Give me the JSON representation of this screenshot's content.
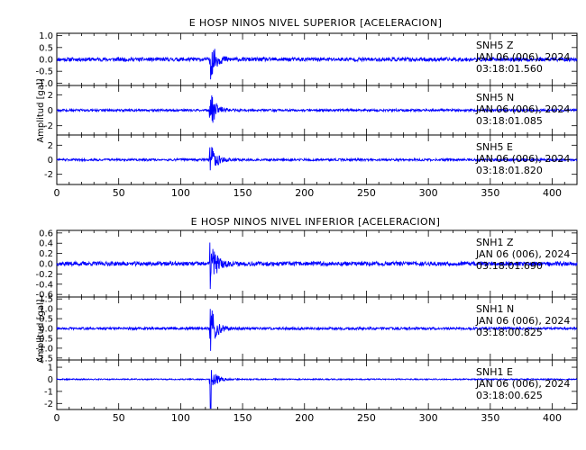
{
  "chart_data": [
    {
      "type": "line",
      "title": "E HOSP NINOS NIVEL SUPERIOR [ACELERACION]",
      "ylabel": "Amplitud [gal]",
      "xlim": [
        0,
        420
      ],
      "x_ticks": [
        "0",
        "50",
        "100",
        "150",
        "200",
        "250",
        "300",
        "350",
        "400"
      ],
      "traces": [
        {
          "station": "SNH5",
          "component": "Z",
          "date": "JAN 06 (006), 2024",
          "time": "03:18:01.560",
          "ylim": [
            -1.1,
            1.1
          ],
          "y_ticks": [
            "1.0",
            "0.5",
            "0.0",
            "-0.5",
            "-1.0"
          ],
          "y_tick_values": [
            1.0,
            0.5,
            0.0,
            -0.5,
            -1.0
          ],
          "noise": 0.08,
          "peak": 1.0,
          "color": "#0000ff"
        },
        {
          "station": "SNH5",
          "component": "N",
          "date": "JAN 06 (006), 2024",
          "time": "03:18:01.085",
          "ylim": [
            -3.2,
            3.2
          ],
          "y_ticks": [
            "2",
            "0",
            "-2"
          ],
          "y_tick_values": [
            2,
            0,
            -2
          ],
          "noise": 0.15,
          "peak": 2.9,
          "color": "#0000ff"
        },
        {
          "station": "SNH5",
          "component": "E",
          "date": "JAN 06 (006), 2024",
          "time": "03:18:01.820",
          "ylim": [
            -3.4,
            3.4
          ],
          "y_ticks": [
            "2",
            "0",
            "-2"
          ],
          "y_tick_values": [
            2,
            0,
            -2
          ],
          "noise": 0.15,
          "peak": 2.9,
          "color": "#0000ff"
        }
      ]
    },
    {
      "type": "line",
      "title": "E HOSP NINOS NIVEL INFERIOR [ACELERACION]",
      "ylabel": "Amplitud [gal]",
      "xlim": [
        0,
        420
      ],
      "x_ticks": [
        "0",
        "50",
        "100",
        "150",
        "200",
        "250",
        "300",
        "350",
        "400"
      ],
      "traces": [
        {
          "station": "SNH1",
          "component": "Z",
          "date": "JAN 06 (006), 2024",
          "time": "03:18:01.690",
          "ylim": [
            -0.65,
            0.65
          ],
          "y_ticks": [
            "0.6",
            "0.4",
            "0.2",
            "0.0",
            "-0.2",
            "-0.4",
            "-0.6"
          ],
          "y_tick_values": [
            0.6,
            0.4,
            0.2,
            0.0,
            -0.2,
            -0.4,
            -0.6
          ],
          "noise": 0.04,
          "peak": 0.6,
          "color": "#0000ff"
        },
        {
          "station": "SNH1",
          "component": "N",
          "date": "JAN 06 (006), 2024",
          "time": "03:18:00.825",
          "ylim": [
            -1.6,
            1.6
          ],
          "y_ticks": [
            "1.5",
            "1.0",
            "0.5",
            "0.0",
            "-0.5",
            "-1.0",
            "-1.5"
          ],
          "y_tick_values": [
            1.5,
            1.0,
            0.5,
            0.0,
            -0.5,
            -1.0,
            -1.5
          ],
          "noise": 0.06,
          "peak": 1.5,
          "color": "#0000ff"
        },
        {
          "station": "SNH1",
          "component": "E",
          "date": "JAN 06 (006), 2024",
          "time": "03:18:00.625",
          "ylim": [
            -2.5,
            1.6
          ],
          "y_ticks": [
            "1",
            "0",
            "-1",
            "-2"
          ],
          "y_tick_values": [
            1,
            0,
            -1,
            -2
          ],
          "noise": 0.05,
          "peak": 1.4,
          "min_peak": -2.4,
          "color": "#0000ff"
        }
      ]
    }
  ],
  "event_onset_s": 123,
  "x_tick_values": [
    0,
    50,
    100,
    150,
    200,
    250,
    300,
    350,
    400
  ]
}
